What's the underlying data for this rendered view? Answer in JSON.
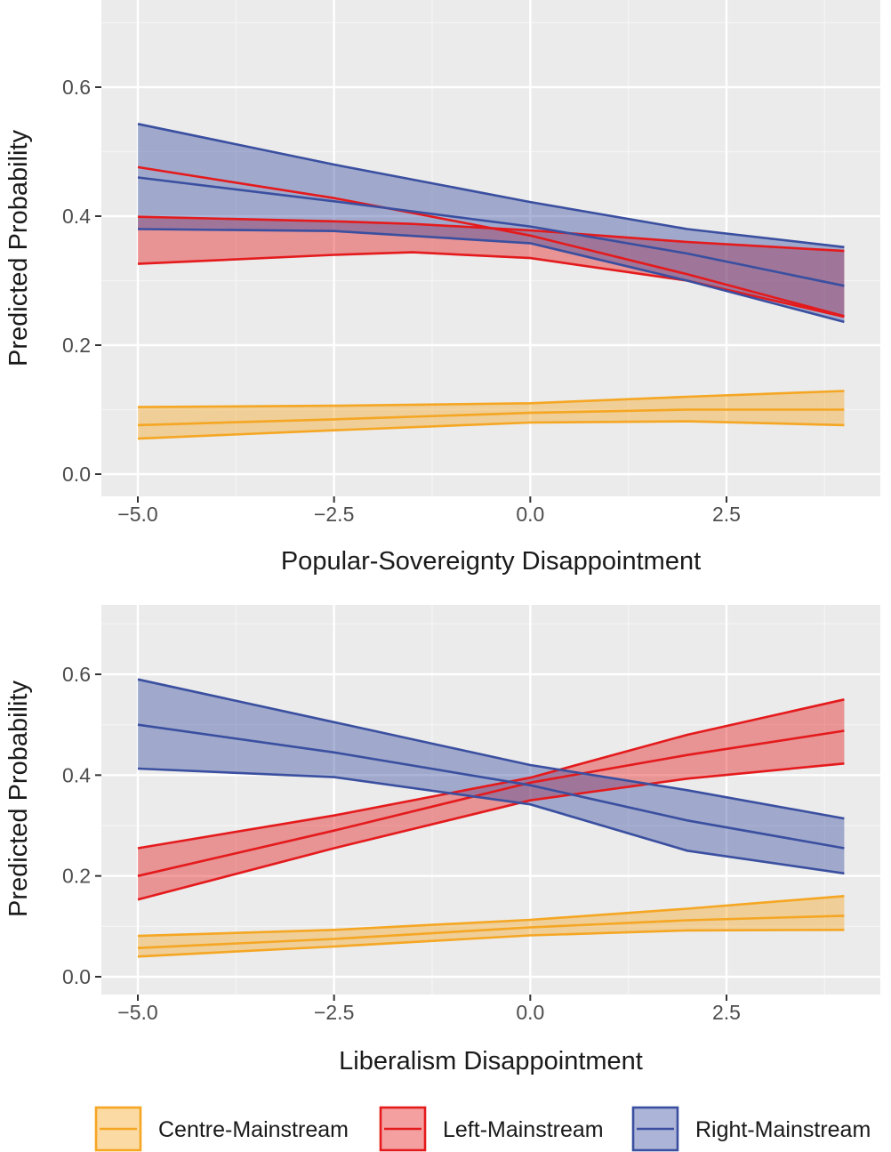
{
  "colors": {
    "panel_bg": "#EBEBEB",
    "grid_major": "#FFFFFF",
    "grid_minor": "#F5F5F5",
    "text": "#4D4D4D",
    "title_text": "#1A1A1A",
    "Centre-Mainstream": "#F5A623",
    "Left-Mainstream": "#E41A1C",
    "Right-Mainstream": "#3A4FA0"
  },
  "legend": {
    "placement": "bottom",
    "items": [
      "Centre-Mainstream",
      "Left-Mainstream",
      "Right-Mainstream"
    ]
  },
  "chart_data": [
    {
      "type": "line",
      "xlabel": "Popular-Sovereignty Disappointment",
      "ylabel": "Predicted Probability",
      "xlim": [
        -5.35,
        4.55
      ],
      "ylim": [
        -0.02,
        0.72
      ],
      "xticks": [
        -5.0,
        -2.5,
        0.0,
        2.5
      ],
      "xtick_labels": [
        "−5.0",
        "−2.5",
        "0.0",
        "2.5"
      ],
      "yticks": [
        0.0,
        0.2,
        0.4,
        0.6
      ],
      "ytick_labels": [
        "0.0",
        "0.2",
        "0.4",
        "0.6"
      ],
      "grid": true,
      "series": [
        {
          "name": "Centre-Mainstream",
          "x": [
            -5,
            -2.5,
            0,
            2,
            4
          ],
          "fit": [
            0.076,
            0.085,
            0.095,
            0.1,
            0.1
          ],
          "lower": [
            0.055,
            0.068,
            0.08,
            0.082,
            0.076
          ],
          "upper": [
            0.104,
            0.106,
            0.11,
            0.12,
            0.129
          ]
        },
        {
          "name": "Left-Mainstream",
          "x": [
            -5,
            -2.5,
            -1.5,
            0,
            2,
            4
          ],
          "fit": [
            0.476,
            0.428,
            0.405,
            0.37,
            0.31,
            0.245
          ],
          "lower": [
            0.326,
            0.34,
            0.344,
            0.335,
            0.3,
            0.244
          ],
          "upper": [
            0.399,
            0.392,
            0.388,
            0.378,
            0.36,
            0.346
          ]
        },
        {
          "name": "Right-Mainstream",
          "x": [
            -5,
            -2.5,
            0,
            2,
            4
          ],
          "fit": [
            0.46,
            0.423,
            0.384,
            0.342,
            0.292
          ],
          "lower": [
            0.38,
            0.377,
            0.358,
            0.3,
            0.236
          ],
          "upper": [
            0.543,
            0.48,
            0.422,
            0.38,
            0.352
          ]
        }
      ]
    },
    {
      "type": "line",
      "xlabel": "Liberalism Disappointment",
      "ylabel": "Predicted Probability",
      "xlim": [
        -5.35,
        4.55
      ],
      "ylim": [
        -0.02,
        0.72
      ],
      "xticks": [
        -5.0,
        -2.5,
        0.0,
        2.5
      ],
      "xtick_labels": [
        "−5.0",
        "−2.5",
        "0.0",
        "2.5"
      ],
      "yticks": [
        0.0,
        0.2,
        0.4,
        0.6
      ],
      "ytick_labels": [
        "0.0",
        "0.2",
        "0.4",
        "0.6"
      ],
      "grid": true,
      "series": [
        {
          "name": "Centre-Mainstream",
          "x": [
            -5,
            -2.5,
            0,
            2,
            4
          ],
          "fit": [
            0.057,
            0.075,
            0.098,
            0.112,
            0.121
          ],
          "lower": [
            0.04,
            0.06,
            0.082,
            0.092,
            0.093
          ],
          "upper": [
            0.081,
            0.093,
            0.113,
            0.135,
            0.16
          ]
        },
        {
          "name": "Left-Mainstream",
          "x": [
            -5,
            -2.5,
            0,
            2,
            4
          ],
          "fit": [
            0.2,
            0.29,
            0.385,
            0.44,
            0.488
          ],
          "lower": [
            0.153,
            0.255,
            0.35,
            0.393,
            0.423
          ],
          "upper": [
            0.255,
            0.32,
            0.395,
            0.48,
            0.55
          ]
        },
        {
          "name": "Right-Mainstream",
          "x": [
            -5,
            -2.5,
            0,
            2,
            4
          ],
          "fit": [
            0.5,
            0.445,
            0.38,
            0.31,
            0.255
          ],
          "lower": [
            0.413,
            0.396,
            0.342,
            0.25,
            0.205
          ],
          "upper": [
            0.59,
            0.505,
            0.42,
            0.37,
            0.314
          ]
        }
      ]
    }
  ]
}
